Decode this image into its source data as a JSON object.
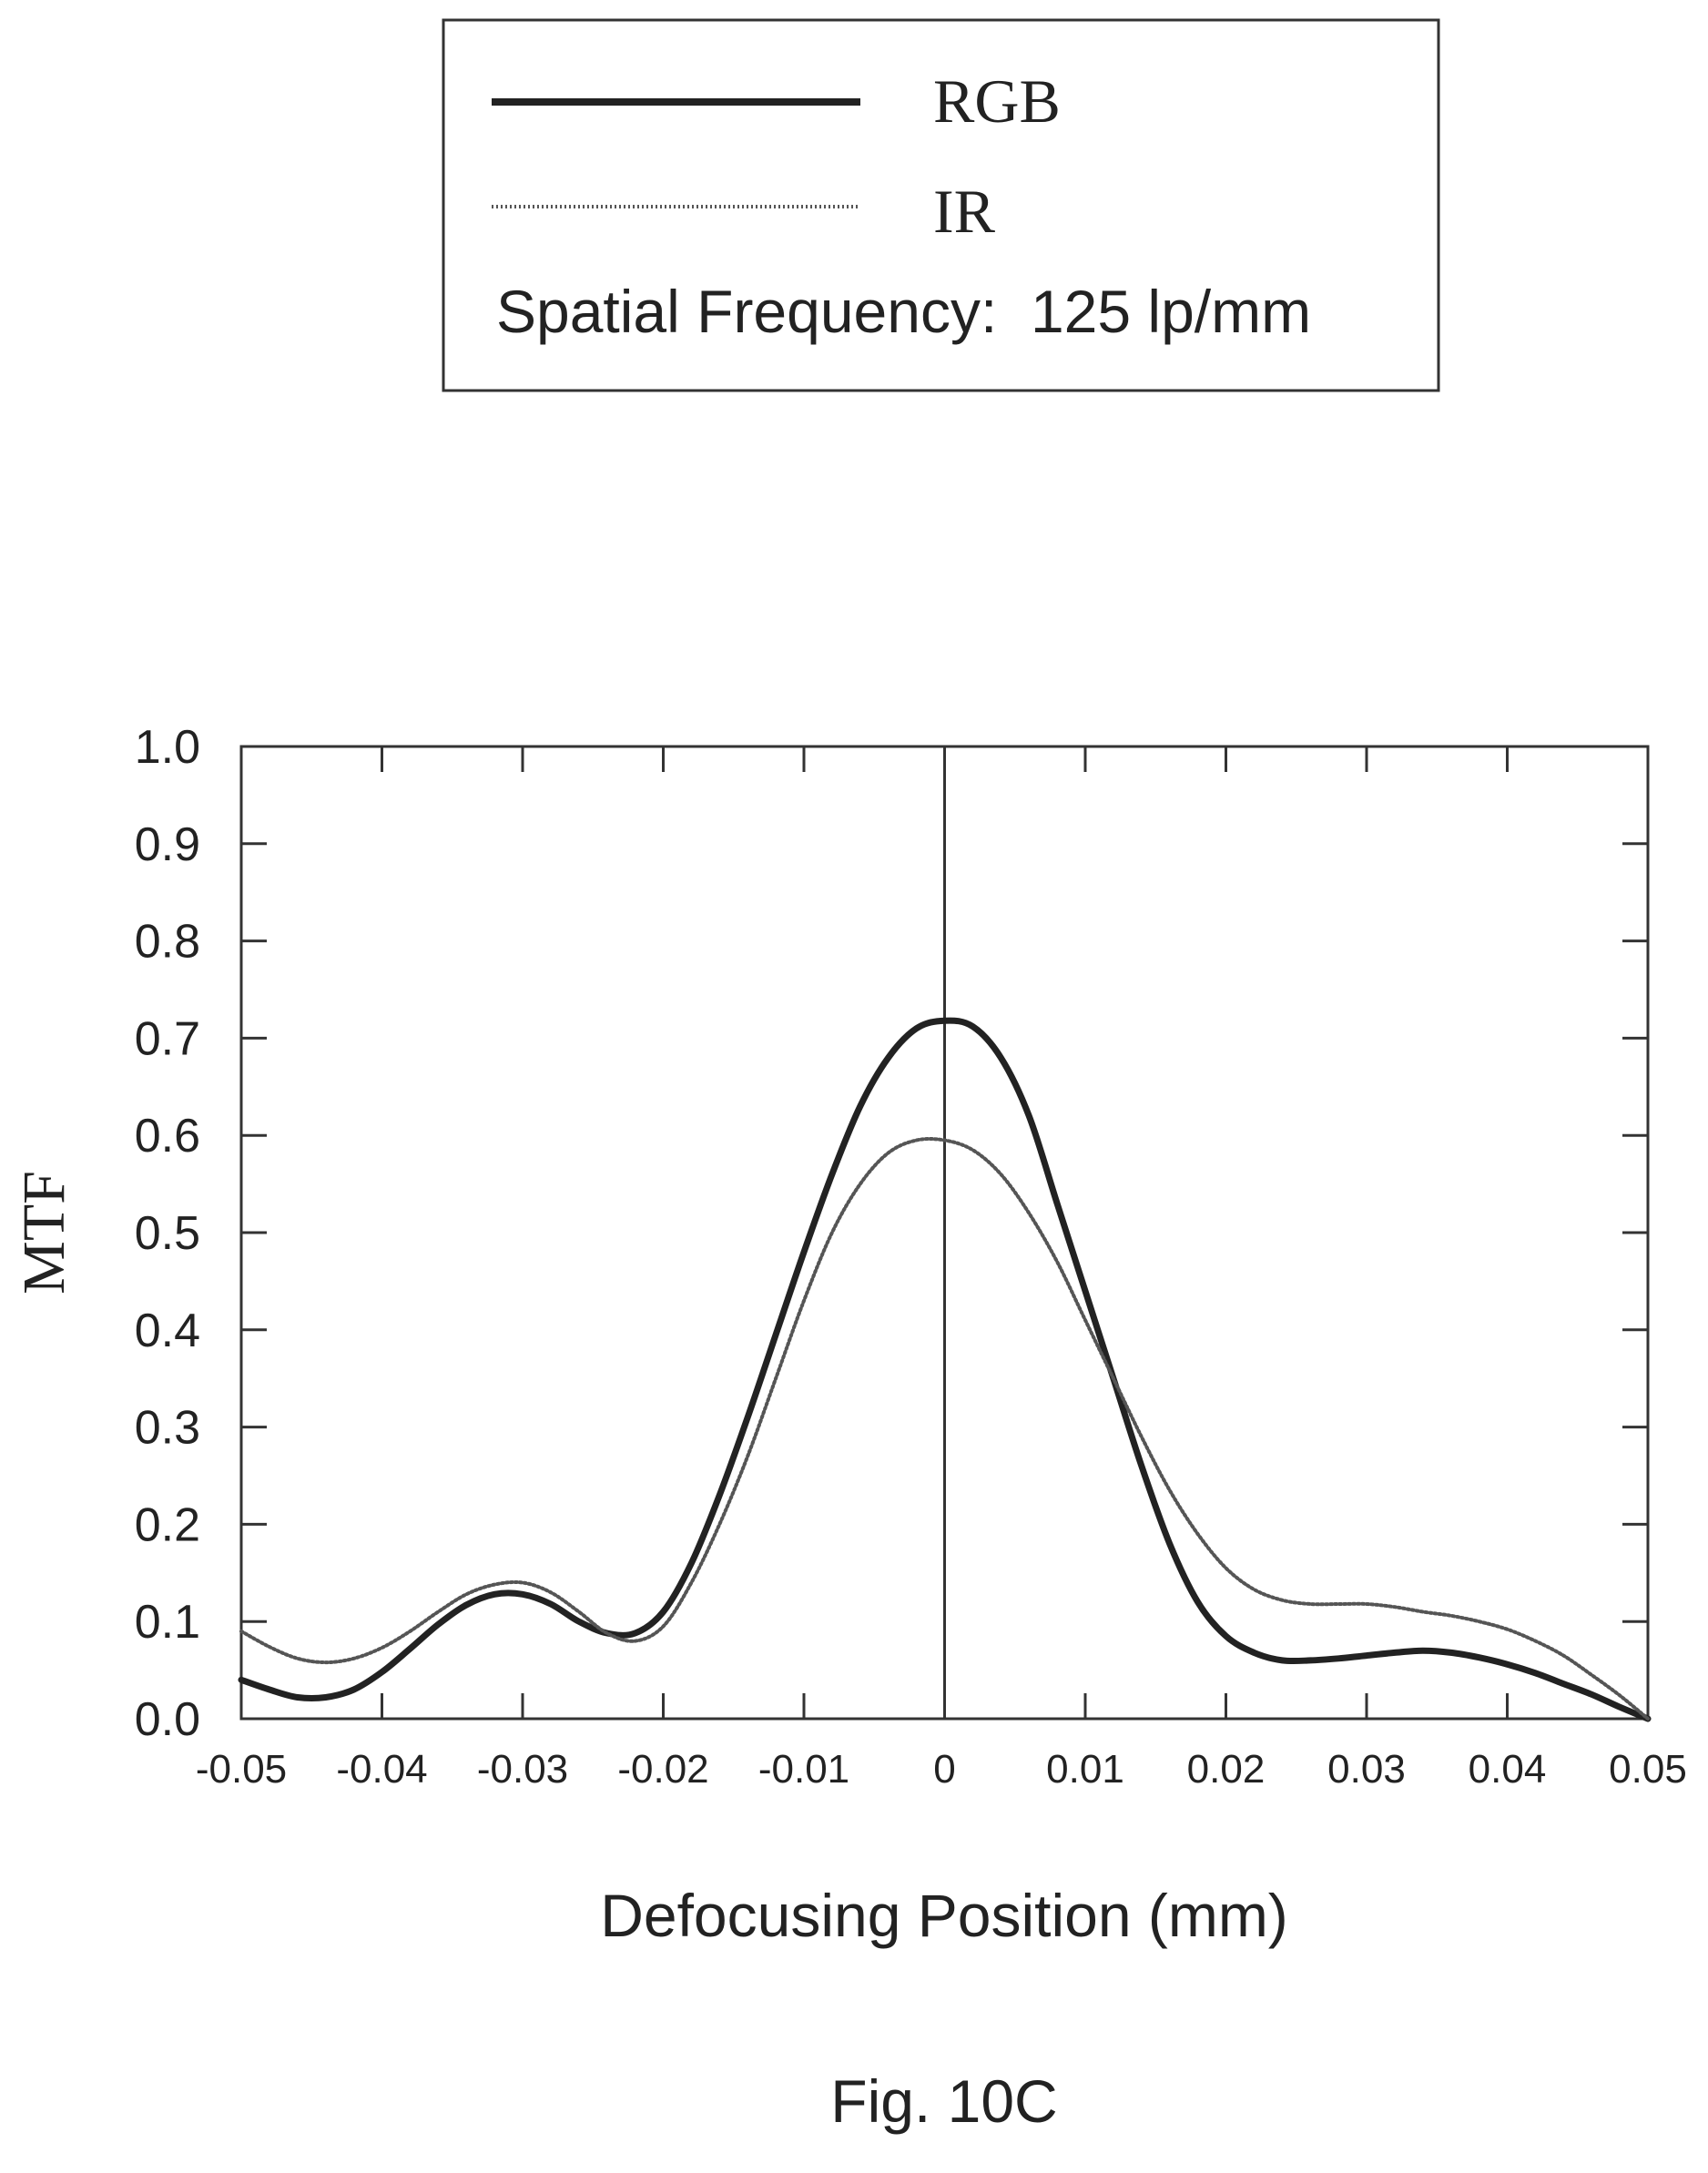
{
  "chart_data": {
    "type": "line",
    "figure_label": "Fig. 10C",
    "xlabel": "Defocusing Position (mm)",
    "ylabel": "MTF",
    "xlim": [
      -0.05,
      0.05
    ],
    "ylim": [
      0.0,
      1.0
    ],
    "x_ticks": [
      "-0.05",
      "-0.04",
      "-0.03",
      "-0.02",
      "-0.01",
      "0",
      "0.01",
      "0.02",
      "0.03",
      "0.04",
      "0.05"
    ],
    "y_ticks": [
      "0.0",
      "0.1",
      "0.2",
      "0.3",
      "0.4",
      "0.5",
      "0.6",
      "0.7",
      "0.8",
      "0.9",
      "1.0"
    ],
    "grid": false,
    "legend": {
      "placement": "top",
      "note": "Spatial Frequency:  125 lp/mm"
    },
    "series": [
      {
        "name": "RGB",
        "style": "solid",
        "color": "#222222",
        "x": [
          -0.05,
          -0.048,
          -0.046,
          -0.044,
          -0.042,
          -0.04,
          -0.038,
          -0.036,
          -0.034,
          -0.032,
          -0.03,
          -0.028,
          -0.026,
          -0.024,
          -0.022,
          -0.02,
          -0.018,
          -0.016,
          -0.014,
          -0.012,
          -0.01,
          -0.008,
          -0.006,
          -0.004,
          -0.002,
          0.0,
          0.002,
          0.004,
          0.006,
          0.008,
          0.01,
          0.012,
          0.014,
          0.016,
          0.018,
          0.02,
          0.022,
          0.024,
          0.026,
          0.028,
          0.03,
          0.032,
          0.034,
          0.036,
          0.038,
          0.04,
          0.042,
          0.044,
          0.046,
          0.048,
          0.05
        ],
        "y": [
          0.04,
          0.03,
          0.022,
          0.022,
          0.03,
          0.048,
          0.072,
          0.097,
          0.117,
          0.128,
          0.128,
          0.118,
          0.1,
          0.088,
          0.088,
          0.11,
          0.16,
          0.23,
          0.31,
          0.395,
          0.48,
          0.56,
          0.63,
          0.68,
          0.71,
          0.718,
          0.712,
          0.68,
          0.62,
          0.53,
          0.44,
          0.35,
          0.26,
          0.18,
          0.12,
          0.085,
          0.068,
          0.06,
          0.06,
          0.062,
          0.065,
          0.068,
          0.07,
          0.068,
          0.063,
          0.056,
          0.047,
          0.036,
          0.025,
          0.012,
          0.0
        ]
      },
      {
        "name": "IR",
        "style": "dotted",
        "color": "#555555",
        "x": [
          -0.05,
          -0.048,
          -0.046,
          -0.044,
          -0.042,
          -0.04,
          -0.038,
          -0.036,
          -0.034,
          -0.032,
          -0.03,
          -0.028,
          -0.026,
          -0.024,
          -0.022,
          -0.02,
          -0.018,
          -0.016,
          -0.014,
          -0.012,
          -0.01,
          -0.008,
          -0.006,
          -0.004,
          -0.002,
          0.0,
          0.002,
          0.004,
          0.006,
          0.008,
          0.01,
          0.012,
          0.014,
          0.016,
          0.018,
          0.02,
          0.022,
          0.024,
          0.026,
          0.028,
          0.03,
          0.032,
          0.034,
          0.036,
          0.038,
          0.04,
          0.042,
          0.044,
          0.046,
          0.048,
          0.05
        ],
        "y": [
          0.09,
          0.074,
          0.062,
          0.058,
          0.062,
          0.073,
          0.09,
          0.11,
          0.128,
          0.138,
          0.14,
          0.13,
          0.11,
          0.088,
          0.08,
          0.095,
          0.14,
          0.2,
          0.27,
          0.35,
          0.43,
          0.5,
          0.55,
          0.582,
          0.595,
          0.595,
          0.585,
          0.56,
          0.52,
          0.47,
          0.41,
          0.35,
          0.29,
          0.235,
          0.19,
          0.155,
          0.133,
          0.122,
          0.118,
          0.118,
          0.118,
          0.115,
          0.11,
          0.106,
          0.1,
          0.092,
          0.08,
          0.065,
          0.045,
          0.024,
          0.0
        ]
      }
    ]
  }
}
